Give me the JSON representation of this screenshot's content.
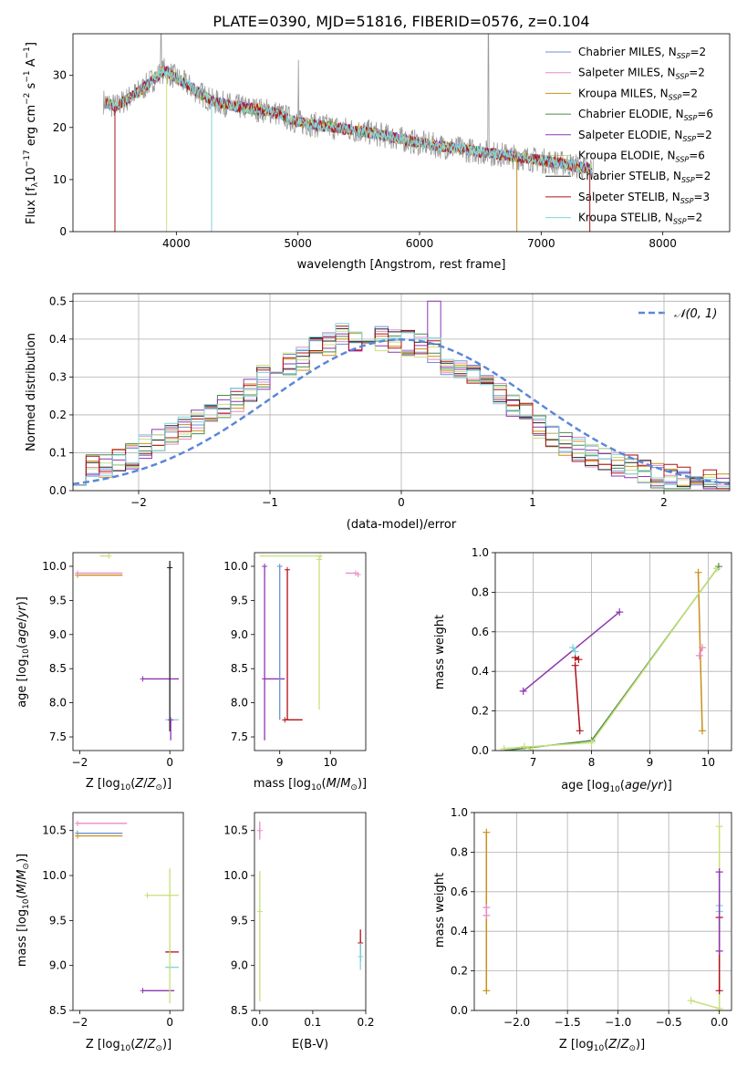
{
  "figure": {
    "title": "PLATE=0390, MJD=51816, FIBERID=0576, z=0.104"
  },
  "colors": [
    "#6b8fd6",
    "#e88bc4",
    "#c8901a",
    "#4a8a4a",
    "#8e36b0",
    "#c6e07a",
    "#222222",
    "#b0101a",
    "#7ed4dc"
  ],
  "chart_data": [
    {
      "id": "spectrum",
      "type": "line",
      "title": "PLATE=0390, MJD=51816, FIBERID=0576, z=0.104",
      "xlabel": "wavelength [Angstrom, rest frame]",
      "ylabel": "Flux [f$_\\lambda$10$^{-17}$ erg cm$^{-2}$ s$^{-1}$ A$^{-1}$]",
      "xlim": [
        3150,
        8550
      ],
      "ylim": [
        0,
        38
      ],
      "xticks": [
        4000,
        5000,
        6000,
        7000,
        8000
      ],
      "yticks": [
        0,
        10,
        20,
        30
      ],
      "legend_position": "top-right",
      "legend": [
        {
          "label": "Chabrier MILES, N",
          "sub": "SSP",
          "suffix": "=2"
        },
        {
          "label": "Salpeter MILES, N",
          "sub": "SSP",
          "suffix": "=2"
        },
        {
          "label": "Kroupa MILES, N",
          "sub": "SSP",
          "suffix": "=2"
        },
        {
          "label": "Chabrier ELODIE, N",
          "sub": "SSP",
          "suffix": "=6"
        },
        {
          "label": "Salpeter ELODIE, N",
          "sub": "SSP",
          "suffix": "=2"
        },
        {
          "label": "Kroupa ELODIE, N",
          "sub": "SSP",
          "suffix": "=6"
        },
        {
          "label": "Chabrier STELIB, N",
          "sub": "SSP",
          "suffix": "=2"
        },
        {
          "label": "Salpeter STELIB, N",
          "sub": "SSP",
          "suffix": "=3"
        },
        {
          "label": "Kroupa STELIB, N",
          "sub": "SSP",
          "suffix": "=2"
        }
      ],
      "continuum": {
        "x": [
          3400,
          3500,
          3700,
          3900,
          4100,
          4300,
          4500,
          4800,
          5000,
          5300,
          5600,
          6000,
          6300,
          6600,
          6900,
          7200,
          7400
        ],
        "y": [
          25,
          24,
          27,
          31,
          28,
          25,
          24,
          23,
          21,
          20,
          19,
          17,
          16,
          15,
          14,
          13,
          12
        ]
      }
    },
    {
      "id": "residual_histogram",
      "type": "step",
      "xlabel": "(data-model)/error",
      "ylabel": "Normed distribution",
      "xlim": [
        -2.5,
        2.5
      ],
      "ylim": [
        0,
        0.52
      ],
      "xticks": [
        -2,
        -1,
        0,
        1,
        2
      ],
      "yticks": [
        0.0,
        0.1,
        0.2,
        0.3,
        0.4,
        0.5
      ],
      "grid": true,
      "legend_position": "top-right",
      "normal_curve": {
        "label": "N(0, 1)",
        "mean": 0,
        "sigma": 1
      },
      "bins": [
        -2.5,
        -2.4,
        -2.3,
        -2.2,
        -2.1,
        -2.0,
        -1.9,
        -1.8,
        -1.7,
        -1.6,
        -1.5,
        -1.4,
        -1.3,
        -1.2,
        -1.1,
        -1.0,
        -0.9,
        -0.8,
        -0.7,
        -0.6,
        -0.5,
        -0.4,
        -0.3,
        -0.2,
        -0.1,
        0.0,
        0.1,
        0.2,
        0.3,
        0.4,
        0.5,
        0.6,
        0.7,
        0.8,
        0.9,
        1.0,
        1.1,
        1.2,
        1.3,
        1.4,
        1.5,
        1.6,
        1.7,
        1.8,
        1.9,
        2.0,
        2.1,
        2.2,
        2.3,
        2.4,
        2.5
      ],
      "base_density": [
        0.05,
        0.06,
        0.07,
        0.08,
        0.09,
        0.12,
        0.13,
        0.15,
        0.16,
        0.18,
        0.2,
        0.22,
        0.24,
        0.27,
        0.3,
        0.31,
        0.34,
        0.35,
        0.38,
        0.39,
        0.41,
        0.4,
        0.39,
        0.4,
        0.4,
        0.39,
        0.38,
        0.37,
        0.34,
        0.32,
        0.3,
        0.27,
        0.25,
        0.23,
        0.2,
        0.17,
        0.14,
        0.12,
        0.11,
        0.09,
        0.08,
        0.07,
        0.06,
        0.05,
        0.04,
        0.035,
        0.03,
        0.025,
        0.02,
        0.015
      ],
      "spike": {
        "x": 0.2,
        "value": 0.5
      }
    },
    {
      "id": "age_vs_Z",
      "type": "errorbar",
      "xlabel": "Z [log$_{10}$(Z/Z$_\\odot$)]",
      "ylabel": "age  [log$_{10}$(age/yr)]",
      "xlim": [
        -2.15,
        0.3
      ],
      "ylim": [
        7.3,
        10.2
      ],
      "xticks": [
        -2,
        0
      ],
      "yticks": [
        7.5,
        8.0,
        8.5,
        9.0,
        9.5,
        10.0
      ],
      "points": [
        {
          "x": -2.05,
          "y": 9.87,
          "xerr": [
            0.0,
            1.0
          ],
          "c": 2
        },
        {
          "x": -2.05,
          "y": 9.9,
          "xerr": [
            0.0,
            1.0
          ],
          "c": 1
        },
        {
          "x": -1.35,
          "y": 10.15,
          "xerr": [
            0.2,
            0.0
          ],
          "c": 5
        },
        {
          "x": -0.6,
          "y": 8.35,
          "xerr": [
            0.0,
            0.8
          ],
          "c": 4
        },
        {
          "x": 0.0,
          "y": 7.75,
          "xerr": [
            0.1,
            0.2
          ],
          "c": 8
        },
        {
          "x": 0.0,
          "y": 9.98,
          "yerr": [
            2.4,
            0.1
          ],
          "c": 6
        },
        {
          "x": 0.02,
          "y": 7.75,
          "yerr": [
            0.3,
            0.0
          ],
          "c": 4
        }
      ]
    },
    {
      "id": "age_vs_mass",
      "type": "errorbar",
      "xlabel": "mass [log$_{10}$(M/M$_\\odot$)]",
      "ylabel": "",
      "xlim": [
        8.5,
        10.7
      ],
      "ylim": [
        7.3,
        10.2
      ],
      "xticks": [
        9,
        10
      ],
      "yticks": [
        7.5,
        8.0,
        8.5,
        9.0,
        9.5,
        10.0
      ],
      "points": [
        {
          "x": 8.7,
          "y": 8.35,
          "xerr": [
            0.0,
            0.4
          ],
          "c": 4
        },
        {
          "x": 8.7,
          "y": 10.0,
          "yerr": [
            2.55,
            0.0
          ],
          "c": 4
        },
        {
          "x": 9.0,
          "y": 10.0,
          "yerr": [
            2.25,
            0.0
          ],
          "c": 0
        },
        {
          "x": 9.1,
          "y": 7.75,
          "xerr": [
            0.0,
            0.35
          ],
          "c": 7
        },
        {
          "x": 9.15,
          "y": 9.95,
          "yerr": [
            2.2,
            0.0
          ],
          "c": 7
        },
        {
          "x": 9.8,
          "y": 10.15,
          "xerr": [
            1.2,
            0.0
          ],
          "c": 5
        },
        {
          "x": 9.78,
          "y": 10.1,
          "yerr": [
            2.2,
            0.0
          ],
          "c": 5
        },
        {
          "x": 10.5,
          "y": 9.9,
          "xerr": [
            0.2,
            0.0
          ],
          "c": 1
        },
        {
          "x": 10.55,
          "y": 9.88,
          "c": 1
        }
      ]
    },
    {
      "id": "weight_vs_age",
      "type": "line",
      "xlabel": "age  [log$_{10}$(age/yr)]",
      "ylabel": "mass weight",
      "xlim": [
        6.35,
        10.4
      ],
      "ylim": [
        0,
        1.0
      ],
      "xticks": [
        7,
        8,
        9,
        10
      ],
      "yticks": [
        0.0,
        0.2,
        0.4,
        0.6,
        0.8,
        1.0
      ],
      "grid": true,
      "series": [
        {
          "c": 4,
          "x": [
            6.83,
            8.48
          ],
          "y": [
            0.3,
            0.7
          ]
        },
        {
          "c": 7,
          "x": [
            7.72,
            7.8
          ],
          "y": [
            0.43,
            0.1
          ]
        },
        {
          "c": 7,
          "x": [
            7.72,
            7.78
          ],
          "y": [
            0.47,
            0.46
          ]
        },
        {
          "c": 8,
          "x": [
            7.68,
            7.72
          ],
          "y": [
            0.52,
            0.5
          ]
        },
        {
          "c": 2,
          "x": [
            9.83,
            9.9
          ],
          "y": [
            0.9,
            0.1
          ]
        },
        {
          "c": 1,
          "x": [
            9.85,
            9.9
          ],
          "y": [
            0.48,
            0.52
          ]
        },
        {
          "c": 3,
          "x": [
            6.5,
            8.0,
            10.18
          ],
          "y": [
            0.0,
            0.05,
            0.93
          ]
        },
        {
          "c": 5,
          "x": [
            6.5,
            8.0,
            10.15
          ],
          "y": [
            0.01,
            0.04,
            0.92
          ]
        },
        {
          "c": 5,
          "x": [
            6.85,
            7.0
          ],
          "y": [
            0.02,
            0.0
          ]
        }
      ]
    },
    {
      "id": "mass_vs_Z",
      "type": "errorbar",
      "xlabel": "Z [log$_{10}$(Z/Z$_\\odot$)]",
      "ylabel": "mass [log$_{10}$(M/M$_\\odot$)]",
      "xlim": [
        -2.15,
        0.3
      ],
      "ylim": [
        8.5,
        10.7
      ],
      "xticks": [
        -2,
        0
      ],
      "yticks": [
        8.5,
        9.0,
        9.5,
        10.0,
        10.5
      ],
      "points": [
        {
          "x": -2.05,
          "y": 10.58,
          "xerr": [
            0.0,
            1.1
          ],
          "c": 1
        },
        {
          "x": -2.05,
          "y": 10.47,
          "xerr": [
            0.0,
            1.0
          ],
          "c": 0
        },
        {
          "x": -2.05,
          "y": 10.44,
          "xerr": [
            0.0,
            1.0
          ],
          "c": 2
        },
        {
          "x": -0.5,
          "y": 9.78,
          "xerr": [
            0.0,
            0.7
          ],
          "c": 5
        },
        {
          "x": 0.0,
          "y": 9.15,
          "xerr": [
            0.1,
            0.2
          ],
          "c": 7
        },
        {
          "x": 0.0,
          "y": 8.98,
          "xerr": [
            0.1,
            0.2
          ],
          "c": 8
        },
        {
          "x": -0.6,
          "y": 8.72,
          "xerr": [
            0.0,
            0.7
          ],
          "c": 4
        },
        {
          "x": 0.0,
          "y": 9.78,
          "yerr": [
            1.2,
            0.3
          ],
          "c": 5
        }
      ]
    },
    {
      "id": "mass_vs_EBV",
      "type": "errorbar",
      "xlabel": "E(B-V)",
      "ylabel": "",
      "xlim": [
        -0.01,
        0.2
      ],
      "ylim": [
        8.5,
        10.7
      ],
      "xticks": [
        0.0,
        0.1,
        0.2
      ],
      "yticks": [
        8.5,
        9.0,
        9.5,
        10.0,
        10.5
      ],
      "points": [
        {
          "x": 0.0,
          "y": 10.5,
          "yerr": [
            0.1,
            0.1
          ],
          "c": 1
        },
        {
          "x": 0.0,
          "y": 9.6,
          "yerr": [
            1.0,
            0.45
          ],
          "c": 5
        },
        {
          "x": 0.19,
          "y": 9.25,
          "yerr": [
            0.2,
            0.15
          ],
          "c": 7
        },
        {
          "x": 0.19,
          "y": 9.1,
          "yerr": [
            0.15,
            0.15
          ],
          "c": 8
        }
      ]
    },
    {
      "id": "weight_vs_Z",
      "type": "line",
      "xlabel": "Z [log$_{10}$(Z/Z$_\\odot$)]",
      "ylabel": "mass weight",
      "xlim": [
        -2.42,
        0.12
      ],
      "ylim": [
        0,
        1.0
      ],
      "xticks": [
        -2.0,
        -1.5,
        -1.0,
        -0.5,
        0.0
      ],
      "yticks": [
        0.0,
        0.2,
        0.4,
        0.6,
        0.8,
        1.0
      ],
      "grid": true,
      "series": [
        {
          "c": 2,
          "x": [
            -2.3,
            -2.3
          ],
          "y": [
            0.9,
            0.1
          ]
        },
        {
          "c": 1,
          "x": [
            -2.3,
            -2.3
          ],
          "y": [
            0.52,
            0.48
          ]
        },
        {
          "c": 5,
          "x": [
            -0.28,
            0.0
          ],
          "y": [
            0.05,
            0.01
          ]
        },
        {
          "c": 5,
          "x": [
            0.0,
            0.0
          ],
          "y": [
            0.93,
            0.0
          ]
        },
        {
          "c": 7,
          "x": [
            0.0,
            0.0
          ],
          "y": [
            0.47,
            0.1
          ]
        },
        {
          "c": 8,
          "x": [
            0.0,
            0.0
          ],
          "y": [
            0.53,
            0.5
          ]
        },
        {
          "c": 4,
          "x": [
            0.0,
            0.0
          ],
          "y": [
            0.7,
            0.3
          ]
        }
      ]
    }
  ]
}
